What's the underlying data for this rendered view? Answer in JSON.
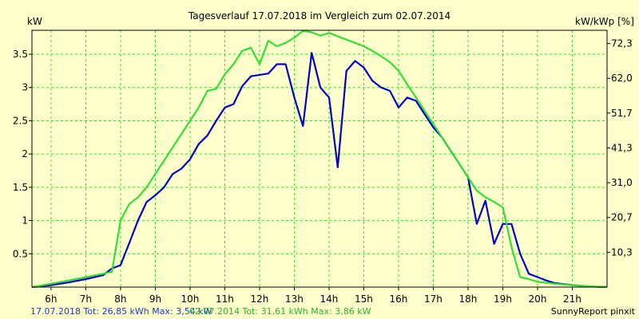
{
  "chart_data": {
    "type": "line",
    "title": "Tagesverlauf 17.07.2018 im Vergleich zum 02.07.2014",
    "ylabel_left": "kW",
    "ylabel_right": "kW/kWp [%]",
    "x_tick_labels": [
      "6h",
      "7h",
      "8h",
      "9h",
      "10h",
      "11h",
      "12h",
      "13h",
      "14h",
      "15h",
      "16h",
      "17h",
      "18h",
      "19h",
      "20h",
      "21h"
    ],
    "y_left_ticks": [
      "0.5",
      "1",
      "1.5",
      "2",
      "2.5",
      "3",
      "3.5"
    ],
    "y_right_ticks": [
      "10,3",
      "20,7",
      "31,0",
      "41,3",
      "51,7",
      "62,0",
      "72,3"
    ],
    "xlim": [
      5.45,
      22.0
    ],
    "ylim": [
      0,
      3.86
    ],
    "grid": true,
    "colors": {
      "series_blue": "#0000cc",
      "series_green": "#33dd33",
      "grid": "#33dd33",
      "background": "#ffffcc",
      "frame": "#000000"
    },
    "series": [
      {
        "color": "#0000cc",
        "x": [
          5.45,
          6.0,
          6.5,
          7.0,
          7.5,
          7.75,
          8.0,
          8.25,
          8.5,
          8.75,
          9.0,
          9.25,
          9.5,
          9.75,
          10.0,
          10.25,
          10.5,
          10.75,
          11.0,
          11.25,
          11.5,
          11.75,
          12.0,
          12.25,
          12.5,
          12.75,
          13.0,
          13.25,
          13.5,
          13.75,
          14.0,
          14.25,
          14.5,
          14.75,
          15.0,
          15.25,
          15.5,
          15.75,
          16.0,
          16.25,
          16.5,
          16.75,
          17.0,
          17.25,
          17.5,
          17.75,
          18.0,
          18.25,
          18.5,
          18.75,
          19.0,
          19.25,
          19.5,
          19.75,
          20.0,
          20.25,
          20.5,
          21.0,
          21.5,
          22.0
        ],
        "y": [
          0.0,
          0.03,
          0.07,
          0.12,
          0.18,
          0.28,
          0.33,
          0.66,
          1.0,
          1.28,
          1.38,
          1.5,
          1.7,
          1.78,
          1.92,
          2.15,
          2.28,
          2.5,
          2.7,
          2.75,
          3.02,
          3.17,
          3.19,
          3.21,
          3.35,
          3.35,
          2.85,
          2.42,
          3.52,
          3.0,
          2.85,
          1.8,
          3.25,
          3.4,
          3.3,
          3.1,
          3.0,
          2.95,
          2.7,
          2.85,
          2.8,
          2.6,
          2.4,
          2.25,
          2.05,
          1.85,
          1.65,
          0.95,
          1.3,
          0.65,
          0.95,
          0.95,
          0.5,
          0.2,
          0.15,
          0.1,
          0.06,
          0.03,
          0.01,
          0.0
        ]
      },
      {
        "color": "#33dd33",
        "x": [
          5.45,
          6.0,
          6.5,
          7.0,
          7.5,
          7.75,
          8.0,
          8.25,
          8.5,
          8.75,
          9.0,
          9.25,
          9.5,
          9.75,
          10.0,
          10.25,
          10.5,
          10.75,
          11.0,
          11.25,
          11.5,
          11.75,
          12.0,
          12.25,
          12.5,
          12.75,
          13.0,
          13.25,
          13.5,
          13.75,
          14.0,
          14.25,
          14.5,
          14.75,
          15.0,
          15.25,
          15.5,
          15.75,
          16.0,
          16.25,
          16.5,
          16.75,
          17.0,
          17.25,
          17.5,
          17.75,
          18.0,
          18.25,
          18.5,
          18.75,
          19.0,
          19.25,
          19.5,
          19.75,
          20.0,
          20.5,
          21.0,
          21.5,
          22.0
        ],
        "y": [
          0.0,
          0.05,
          0.1,
          0.15,
          0.2,
          0.23,
          1.0,
          1.25,
          1.35,
          1.5,
          1.7,
          1.9,
          2.1,
          2.3,
          2.5,
          2.7,
          2.95,
          2.98,
          3.2,
          3.35,
          3.55,
          3.6,
          3.35,
          3.7,
          3.62,
          3.67,
          3.75,
          3.85,
          3.83,
          3.78,
          3.82,
          3.77,
          3.72,
          3.67,
          3.62,
          3.55,
          3.47,
          3.38,
          3.25,
          3.05,
          2.85,
          2.65,
          2.45,
          2.25,
          2.05,
          1.85,
          1.65,
          1.45,
          1.35,
          1.28,
          1.2,
          0.6,
          0.15,
          0.12,
          0.08,
          0.05,
          0.03,
          0.01,
          0.0
        ]
      }
    ]
  },
  "footer": {
    "blue_summary": "17.07.2018 Tot: 26,85 kWh Max: 3,54 kW",
    "green_summary": "02.07.2014 Tot: 31,61 kWh Max: 3,86 kW",
    "brand": "SunnyReport pinxit"
  }
}
